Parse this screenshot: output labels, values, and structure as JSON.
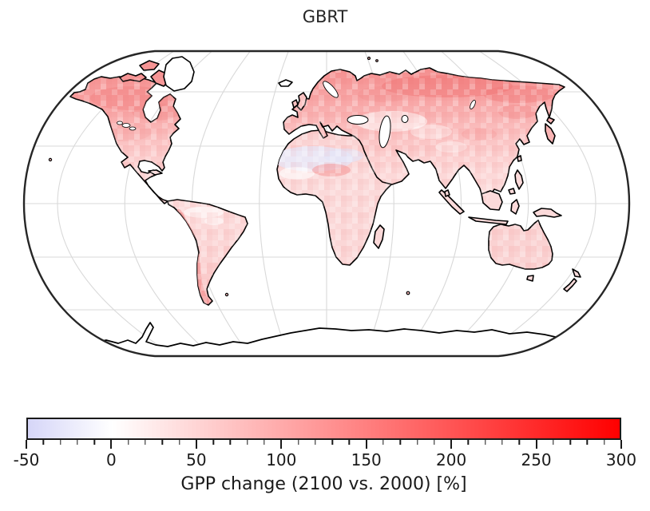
{
  "figure": {
    "title": "GBRT"
  },
  "map": {
    "projection": "Robinson",
    "coastline_color": "#000000",
    "gridline_color": "#d9d9d9",
    "outline_color": "#262626",
    "ocean_color": "#ffffff"
  },
  "chart_data": {
    "type": "heatmap",
    "title": "GBRT",
    "subtitle": "",
    "legend_position": "bottom",
    "grid": true,
    "colorbar": {
      "label": "GPP change (2100 vs. 2000) [%]",
      "orientation": "horizontal",
      "min": -50,
      "max": 300,
      "major_ticks": [
        -50,
        0,
        50,
        100,
        150,
        200,
        250,
        300
      ],
      "minor_tick_step": 10,
      "colormap": "bwr (blue-white-red), white at 0",
      "color_stops": [
        {
          "value": -50,
          "hex": "#d6d6f8"
        },
        {
          "value": 0,
          "hex": "#ffffff"
        },
        {
          "value": 300,
          "hex": "#ff0000"
        }
      ]
    },
    "gridlines": {
      "parallels_deg": [
        -60,
        -30,
        0,
        30,
        60
      ],
      "meridians_deg": [
        -160,
        -120,
        -80,
        -40,
        0,
        40,
        80,
        120,
        160
      ]
    },
    "regions": [
      {
        "region": "Boreal Canada / Alaska",
        "gpp_change_pct": 100
      },
      {
        "region": "Contiguous United States",
        "gpp_change_pct": 55
      },
      {
        "region": "Central America / Caribbean",
        "gpp_change_pct": 30
      },
      {
        "region": "Amazon basin",
        "gpp_change_pct": 15
      },
      {
        "region": "Andes and Patagonia",
        "gpp_change_pct": 60
      },
      {
        "region": "Eastern South America",
        "gpp_change_pct": 30
      },
      {
        "region": "Europe",
        "gpp_change_pct": 45
      },
      {
        "region": "Siberia / boreal Eurasia",
        "gpp_change_pct": 120
      },
      {
        "region": "Central Asia steppe",
        "gpp_change_pct": 55
      },
      {
        "region": "Tibetan Plateau / Kazakhstan patches",
        "gpp_change_pct": 5
      },
      {
        "region": "East Asia",
        "gpp_change_pct": 50
      },
      {
        "region": "India / South Asia",
        "gpp_change_pct": 30
      },
      {
        "region": "Southeast Asia / Indonesia",
        "gpp_change_pct": 20
      },
      {
        "region": "Sahara (central)",
        "gpp_change_pct": -20
      },
      {
        "region": "Sahel red patch",
        "gpp_change_pct": 60
      },
      {
        "region": "Sub-Saharan Africa",
        "gpp_change_pct": 25
      },
      {
        "region": "Southern Africa",
        "gpp_change_pct": 30
      },
      {
        "region": "Australia",
        "gpp_change_pct": 30
      },
      {
        "region": "Greenland",
        "gpp_change_pct": null
      },
      {
        "region": "Antarctica",
        "gpp_change_pct": null
      }
    ]
  }
}
